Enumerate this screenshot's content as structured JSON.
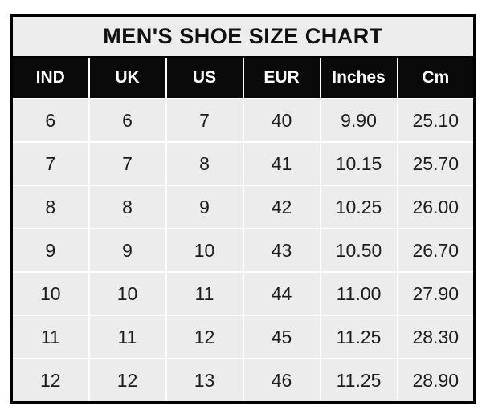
{
  "title": "MEN'S SHOE SIZE CHART",
  "colors": {
    "title_bg": "#ededed",
    "header_bg": "#0a0a0a",
    "header_text": "#ffffff",
    "cell_bg": "#ececec",
    "cell_text": "#1c1c1c",
    "grid": "#ffffff",
    "border": "#000000"
  },
  "chart_data": {
    "type": "table",
    "title": "MEN'S SHOE SIZE CHART",
    "columns": [
      "IND",
      "UK",
      "US",
      "EUR",
      "Inches",
      "Cm"
    ],
    "rows": [
      [
        "6",
        "6",
        "7",
        "40",
        "9.90",
        "25.10"
      ],
      [
        "7",
        "7",
        "8",
        "41",
        "10.15",
        "25.70"
      ],
      [
        "8",
        "8",
        "9",
        "42",
        "10.25",
        "26.00"
      ],
      [
        "9",
        "9",
        "10",
        "43",
        "10.50",
        "26.70"
      ],
      [
        "10",
        "10",
        "11",
        "44",
        "11.00",
        "27.90"
      ],
      [
        "11",
        "11",
        "12",
        "45",
        "11.25",
        "28.30"
      ],
      [
        "12",
        "12",
        "13",
        "46",
        "11.25",
        "28.90"
      ]
    ]
  }
}
